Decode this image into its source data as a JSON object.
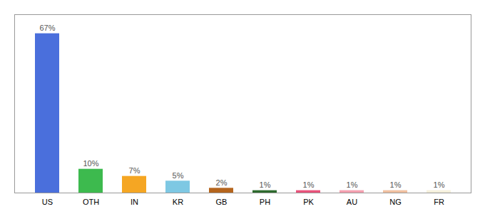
{
  "chart_data": {
    "type": "bar",
    "categories": [
      "US",
      "OTH",
      "IN",
      "KR",
      "GB",
      "PH",
      "PK",
      "AU",
      "NG",
      "FR"
    ],
    "values": [
      67,
      10,
      7,
      5,
      2,
      1,
      1,
      1,
      1,
      1
    ],
    "value_labels": [
      "67%",
      "10%",
      "7%",
      "5%",
      "2%",
      "1%",
      "1%",
      "1%",
      "1%",
      "1%"
    ],
    "colors": [
      "#4a6fdc",
      "#3dba4e",
      "#f5a623",
      "#7ec8e3",
      "#b5651d",
      "#2d6a2d",
      "#e8527a",
      "#f4a0b0",
      "#f0c0a0",
      "#f5f0dc"
    ],
    "ylim": [
      0,
      75
    ],
    "data_labels": true,
    "tick_labels": "x",
    "grid": false
  }
}
